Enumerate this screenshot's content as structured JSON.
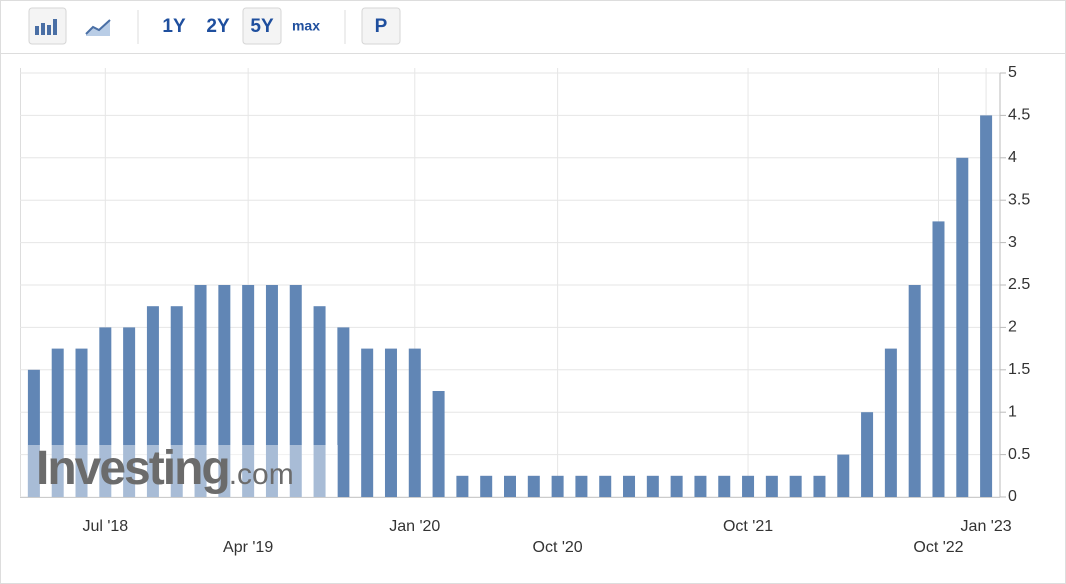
{
  "toolbar": {
    "ranges": [
      "1Y",
      "2Y",
      "5Y",
      "max"
    ],
    "p_button": "P"
  },
  "chart_data": {
    "type": "bar",
    "watermark": {
      "main": "Investing",
      "suffix": ".com"
    },
    "categories": [
      null,
      null,
      null,
      "Jul '18",
      null,
      null,
      null,
      null,
      null,
      "Apr '19",
      null,
      null,
      null,
      null,
      null,
      null,
      "Jan '20",
      null,
      null,
      null,
      null,
      null,
      "Oct '20",
      null,
      null,
      null,
      null,
      null,
      null,
      null,
      "Oct '21",
      null,
      null,
      null,
      null,
      null,
      null,
      null,
      "Oct '22",
      null,
      "Jan '23"
    ],
    "values": [
      1.5,
      1.75,
      1.75,
      2,
      2,
      2.25,
      2.25,
      2.5,
      2.5,
      2.5,
      2.5,
      2.5,
      2.25,
      2,
      1.75,
      1.75,
      1.75,
      1.25,
      0.25,
      0.25,
      0.25,
      0.25,
      0.25,
      0.25,
      0.25,
      0.25,
      0.25,
      0.25,
      0.25,
      0.25,
      0.25,
      0.25,
      0.25,
      0.25,
      0.5,
      1,
      1.75,
      2.5,
      3.25,
      4,
      4.5
    ],
    "color": "#6186b5",
    "ylim": [
      0,
      5
    ],
    "yticks": [
      0,
      0.5,
      1,
      1.5,
      2,
      2.5,
      3,
      3.5,
      4,
      4.5,
      5
    ],
    "grid": true
  }
}
